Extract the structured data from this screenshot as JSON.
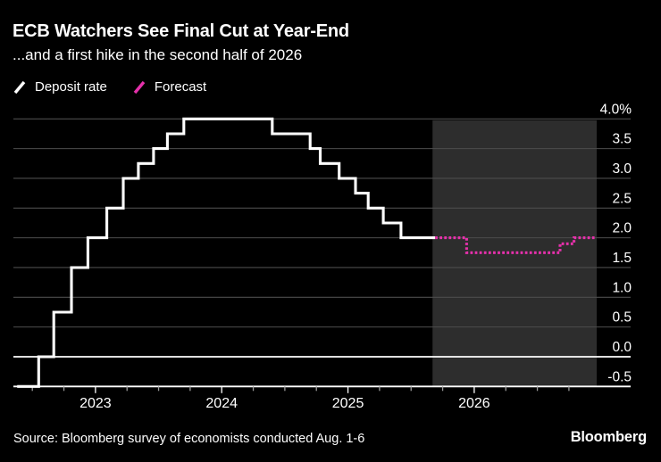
{
  "header": {
    "title": "ECB Watchers See Final Cut at Year-End",
    "subtitle": "...and a first hike in the second half of 2026"
  },
  "legend": {
    "items": [
      {
        "label": "Deposit rate",
        "color": "#ffffff"
      },
      {
        "label": "Forecast",
        "color": "#e531ab"
      }
    ]
  },
  "footer": {
    "source": "Source: Bloomberg survey of economists conducted Aug. 1-6",
    "brand": "Bloomberg"
  },
  "colors": {
    "background": "#000000",
    "text": "#ffffff",
    "grid": "#4d4d4d",
    "emphasis_line": "#ffffff",
    "minor_tick": "#9a9a9a",
    "year_tick": "#ffffff",
    "forecast_band": "#2d2d2d",
    "deposit_line": "#ffffff",
    "forecast_line": "#e531ab"
  },
  "chart_data": {
    "type": "line",
    "variant": "step",
    "title": "ECB Watchers See Final Cut at Year-End",
    "subtitle": "...and a first hike in the second half of 2026",
    "unit": "%",
    "x_unit": "decimal_year",
    "xlim": [
      2022.35,
      2026.97
    ],
    "ylim": [
      -0.5,
      4.0
    ],
    "grid": true,
    "legend_position": "top-left",
    "yticks": [
      {
        "value": 4.0,
        "label": "4.0%",
        "emphasis": false
      },
      {
        "value": 3.5,
        "label": "3.5",
        "emphasis": false
      },
      {
        "value": 3.0,
        "label": "3.0",
        "emphasis": false
      },
      {
        "value": 2.5,
        "label": "2.5",
        "emphasis": false
      },
      {
        "value": 2.0,
        "label": "2.0",
        "emphasis": false
      },
      {
        "value": 1.5,
        "label": "1.5",
        "emphasis": false
      },
      {
        "value": 1.0,
        "label": "1.0",
        "emphasis": false
      },
      {
        "value": 0.5,
        "label": "0.5",
        "emphasis": false
      },
      {
        "value": 0.0,
        "label": "0.0",
        "emphasis": true
      },
      {
        "value": -0.5,
        "label": "-0.5",
        "emphasis": true
      }
    ],
    "xticks_years": [
      {
        "value": 2023,
        "label": "2023"
      },
      {
        "value": 2024,
        "label": "2024"
      },
      {
        "value": 2025,
        "label": "2025"
      },
      {
        "value": 2026,
        "label": "2026"
      }
    ],
    "xticks_minor_step": 0.25,
    "forecast_band": {
      "from": 2025.67,
      "to": 2026.97
    },
    "series": [
      {
        "name": "Deposit rate",
        "style": "solid",
        "color": "#ffffff",
        "steps": [
          [
            2022.38,
            -0.5
          ],
          [
            2022.55,
            0.0
          ],
          [
            2022.67,
            0.75
          ],
          [
            2022.81,
            1.5
          ],
          [
            2022.94,
            2.0
          ],
          [
            2023.09,
            2.5
          ],
          [
            2023.22,
            3.0
          ],
          [
            2023.34,
            3.25
          ],
          [
            2023.46,
            3.5
          ],
          [
            2023.57,
            3.75
          ],
          [
            2023.7,
            4.0
          ],
          [
            2024.4,
            3.75
          ],
          [
            2024.7,
            3.5
          ],
          [
            2024.78,
            3.25
          ],
          [
            2024.93,
            3.0
          ],
          [
            2025.06,
            2.75
          ],
          [
            2025.16,
            2.5
          ],
          [
            2025.28,
            2.25
          ],
          [
            2025.42,
            2.0
          ]
        ],
        "end": 2025.69
      },
      {
        "name": "Forecast",
        "style": "dotted",
        "color": "#e531ab",
        "steps": [
          [
            2025.69,
            2.0
          ],
          [
            2025.94,
            1.75
          ],
          [
            2026.68,
            1.9
          ],
          [
            2026.79,
            2.0
          ]
        ],
        "end": 2026.96
      }
    ]
  }
}
